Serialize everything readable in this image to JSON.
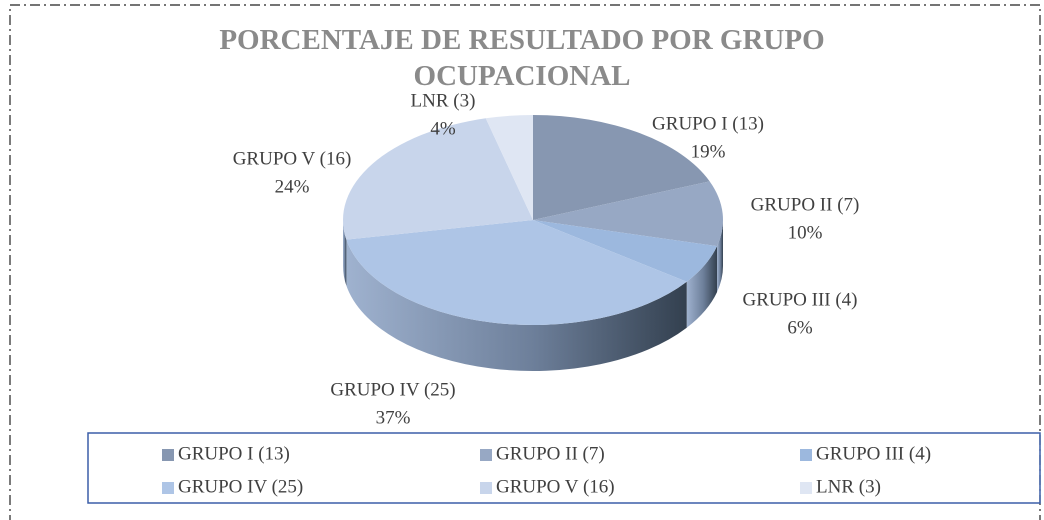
{
  "chart_data": {
    "type": "pie",
    "title": "PORCENTAJE DE RESULTADO POR GRUPO OCUPACIONAL",
    "categories": [
      "GRUPO I (13)",
      "GRUPO II (7)",
      "GRUPO III (4)",
      "GRUPO IV (25)",
      "GRUPO V (16)",
      "LNR (3)"
    ],
    "values": [
      19,
      10,
      6,
      37,
      24,
      4
    ],
    "value_labels": [
      "19%",
      "10%",
      "6%",
      "37%",
      "24%",
      "4%"
    ],
    "colors": [
      "#8797b1",
      "#97a8c4",
      "#9cb8de",
      "#aec5e6",
      "#c8d5eb",
      "#dfe6f3"
    ],
    "legend": "bottom"
  }
}
